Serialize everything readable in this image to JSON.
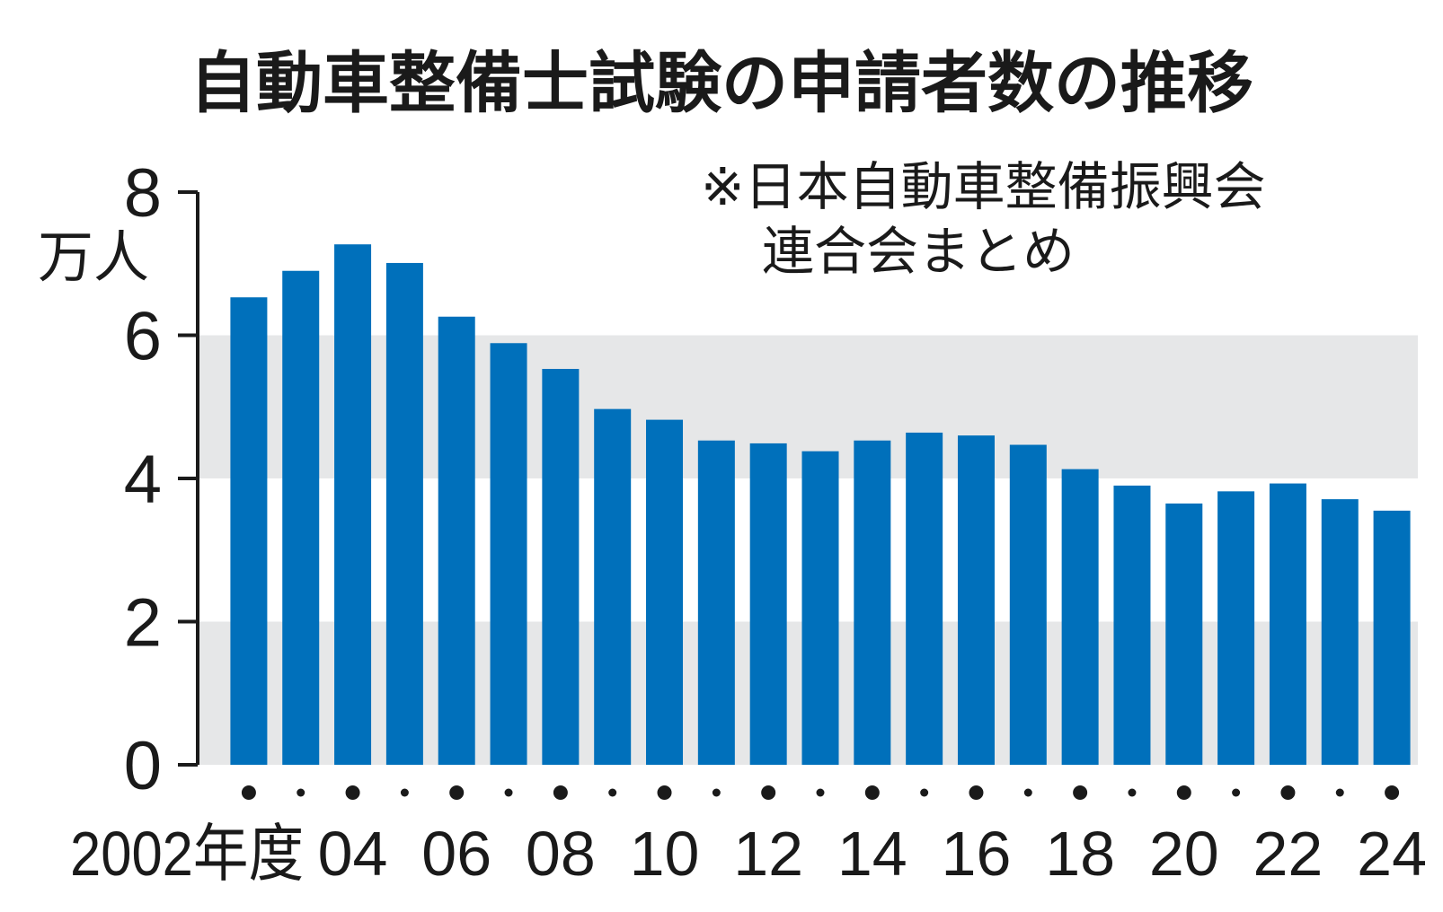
{
  "chart_data": {
    "type": "bar",
    "title": "自動車整備士試験の申請者数の推移",
    "source_note": [
      "※日本自動車整備振興会",
      "連合会まとめ"
    ],
    "ylabel": "万人",
    "ylim": [
      0,
      8
    ],
    "yticks": [
      "0",
      "2",
      "4",
      "6",
      "8"
    ],
    "x_first_label": "2002年度",
    "x_tick_labels": [
      "04",
      "06",
      "08",
      "10",
      "12",
      "14",
      "16",
      "18",
      "20",
      "22",
      "24"
    ],
    "categories": [
      "2002",
      "2003",
      "2004",
      "2005",
      "2006",
      "2007",
      "2008",
      "2009",
      "2010",
      "2011",
      "2012",
      "2013",
      "2014",
      "2015",
      "2016",
      "2017",
      "2018",
      "2019",
      "2020",
      "2021",
      "2022",
      "2023",
      "2024"
    ],
    "values": [
      6.53,
      6.9,
      7.27,
      7.01,
      6.26,
      5.89,
      5.53,
      4.97,
      4.82,
      4.53,
      4.49,
      4.38,
      4.53,
      4.64,
      4.6,
      4.47,
      4.13,
      3.9,
      3.65,
      3.82,
      3.93,
      3.71,
      3.55
    ],
    "grid": "alternating bands",
    "colors": {
      "bar": "#0070bb",
      "band": "#e6e7e8",
      "axis": "#1a1a1a"
    }
  }
}
